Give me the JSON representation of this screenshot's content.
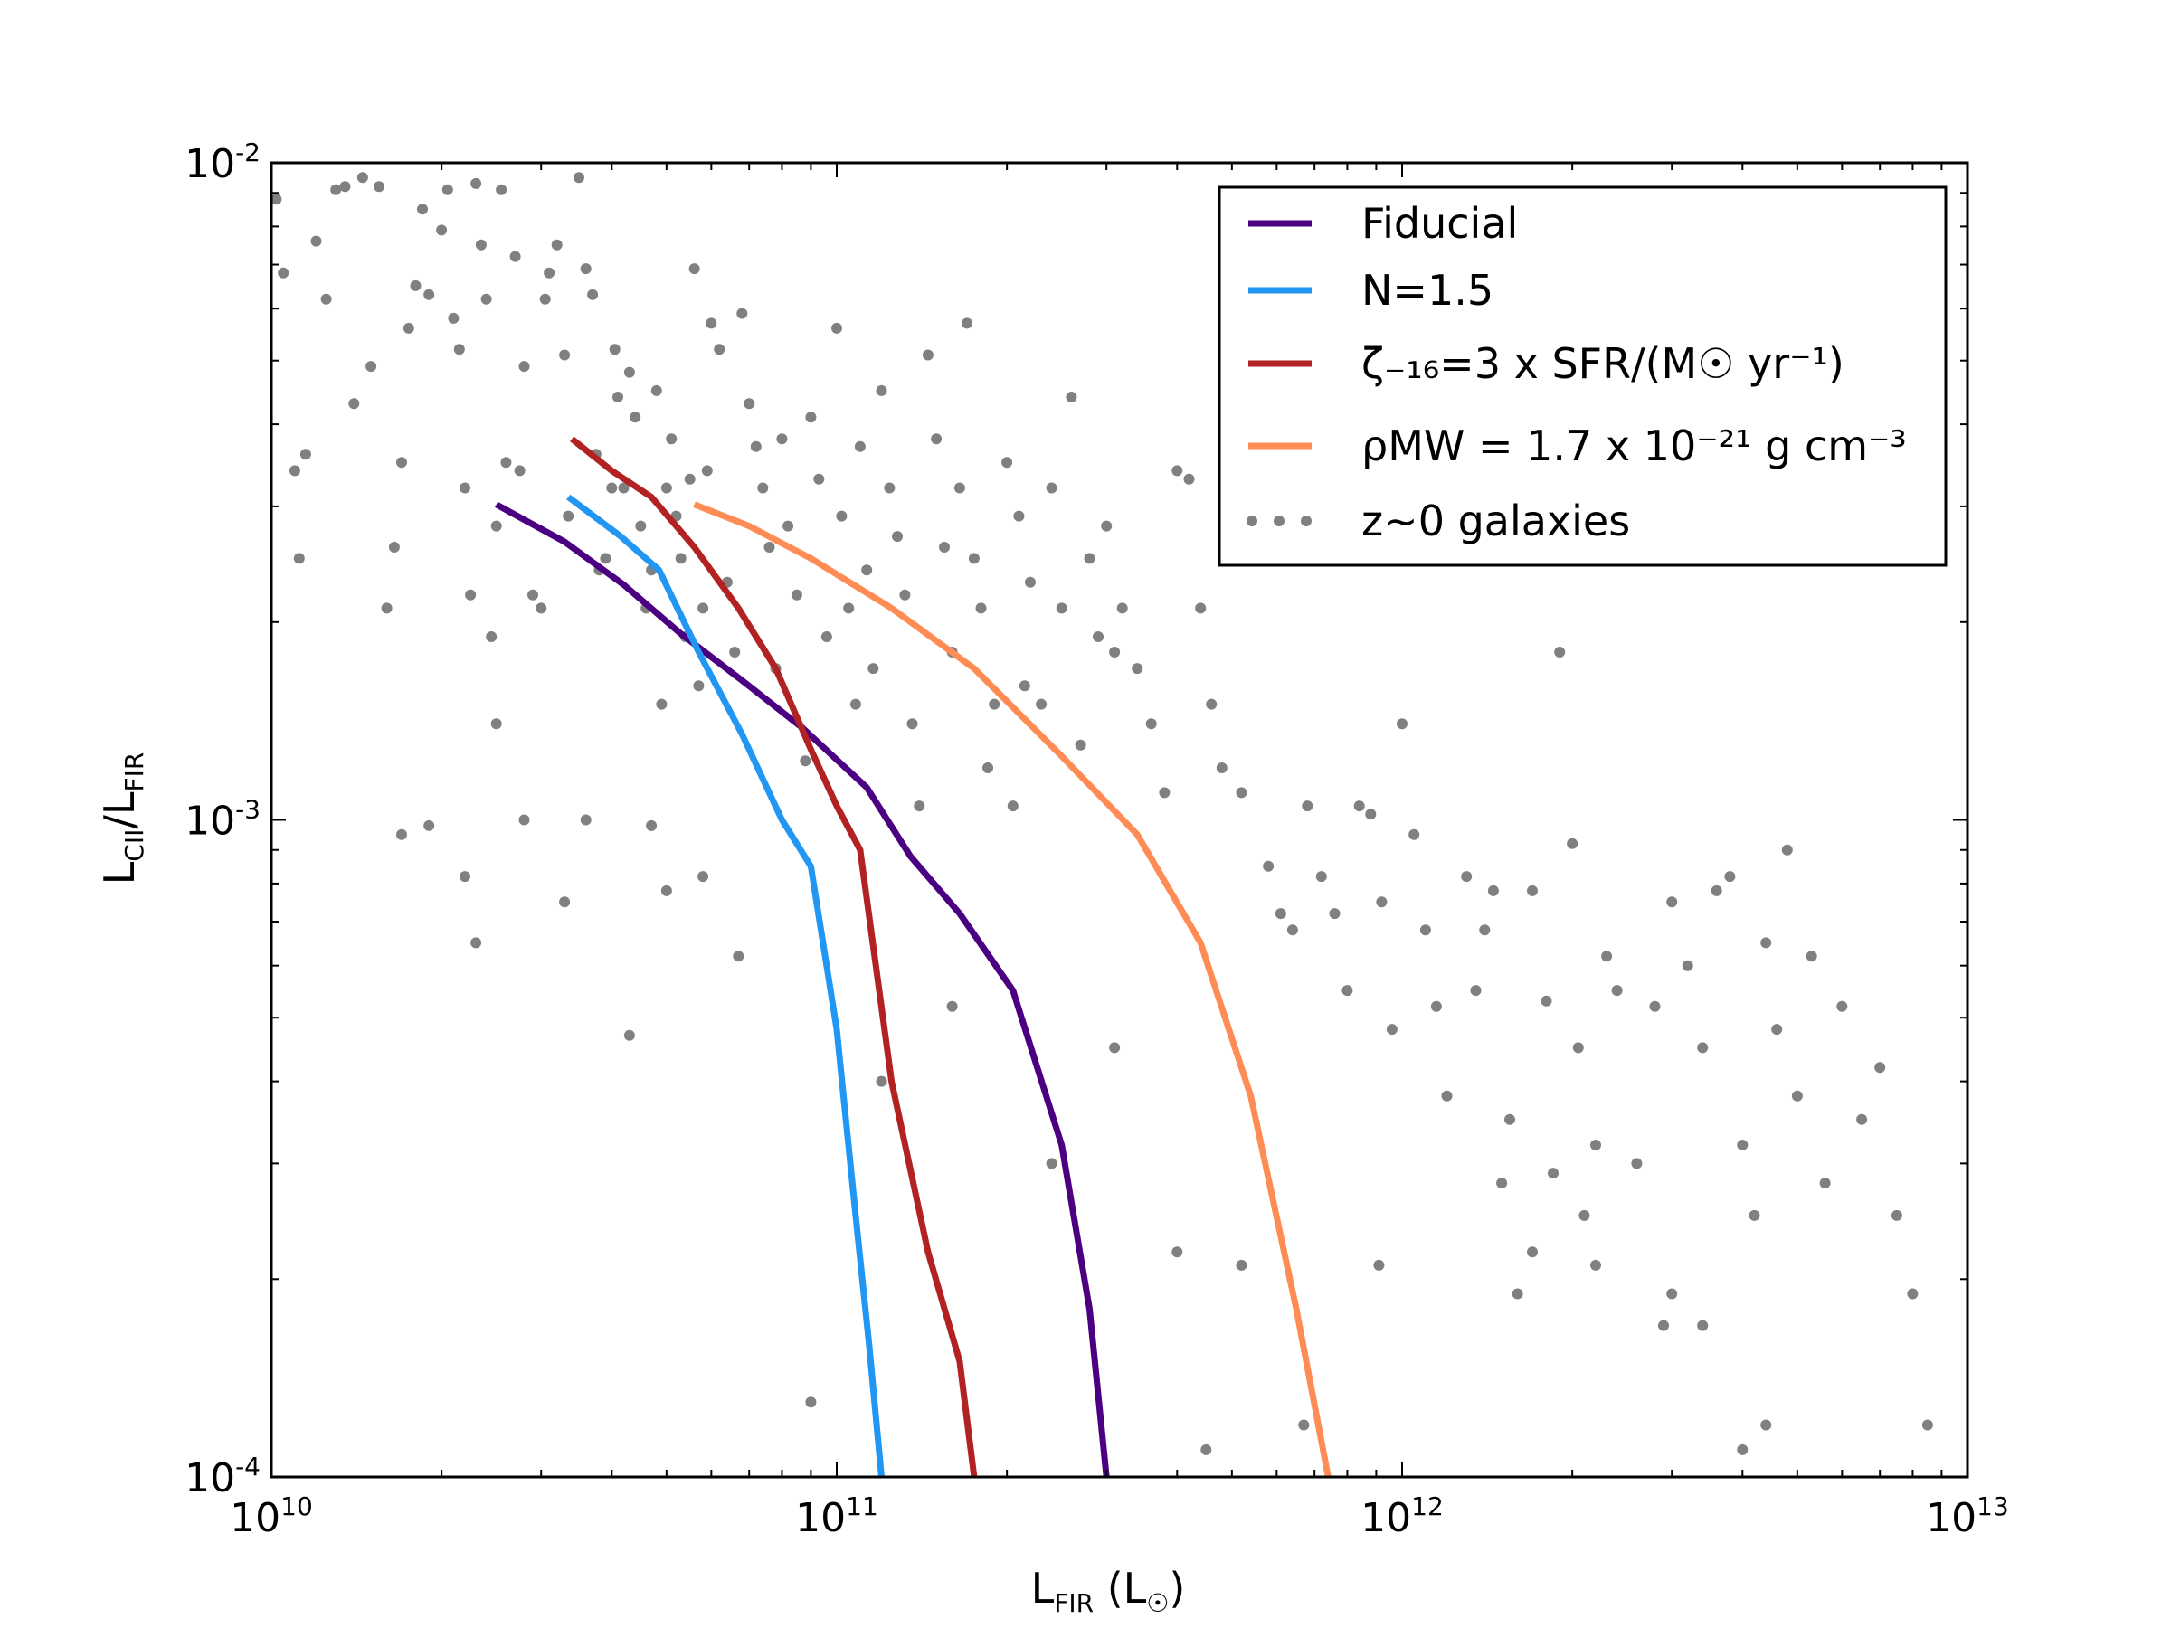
{
  "chart_data": {
    "type": "line",
    "title": "",
    "xscale": "log",
    "yscale": "log",
    "xlim": [
      10000000000.0,
      10000000000000.0
    ],
    "ylim": [
      0.0001,
      0.01
    ],
    "xlabel": {
      "main": "L",
      "sub": "FIR",
      "tail": " (L",
      "sym": "☉",
      "end": ")"
    },
    "ylabel": {
      "a": "L",
      "a_sub": "CII",
      "b": "/L",
      "b_sub": "FIR"
    },
    "xticks": [
      {
        "value": 10000000000.0,
        "base": "10",
        "exp": "10"
      },
      {
        "value": 100000000000.0,
        "base": "10",
        "exp": "11"
      },
      {
        "value": 1000000000000.0,
        "base": "10",
        "exp": "12"
      },
      {
        "value": 10000000000000.0,
        "base": "10",
        "exp": "13"
      }
    ],
    "yticks": [
      {
        "value": 0.01,
        "base": "10",
        "exp": "-2"
      },
      {
        "value": 0.001,
        "base": "10",
        "exp": "-3"
      },
      {
        "value": 0.0001,
        "base": "10",
        "exp": "-4"
      }
    ],
    "legend_position": "top-right",
    "series": [
      {
        "name": "Fiducial",
        "color": "#4b0082",
        "x": [
          25000000000.0,
          33000000000.0,
          42000000000.0,
          53000000000.0,
          68000000000.0,
          87000000000.0,
          113000000000.0,
          135000000000.0,
          165000000000.0,
          205000000000.0,
          250000000000.0,
          280000000000.0,
          300000000000.0
        ],
        "y": [
          0.00302,
          0.00265,
          0.00228,
          0.00192,
          0.00163,
          0.00138,
          0.00112,
          0.00088,
          0.00072,
          0.00055,
          0.00032,
          0.00018,
          0.0001
        ]
      },
      {
        "name": "N=1.5",
        "color": "#2196f3",
        "x": [
          33500000000.0,
          41500000000.0,
          48500000000.0,
          57000000000.0,
          68000000000.0,
          80000000000.0,
          90000000000.0,
          100000000000.0,
          108000000000.0,
          114000000000.0,
          120000000000.0
        ],
        "y": [
          0.0031,
          0.0027,
          0.0024,
          0.0018,
          0.00135,
          0.001,
          0.00085,
          0.00048,
          0.00025,
          0.00016,
          0.0001
        ]
      },
      {
        "name": "ζ₋₁₆=3 x SFR/(M☉ yr⁻¹)",
        "color": "#b22222",
        "x": [
          34000000000.0,
          40000000000.0,
          47000000000.0,
          56000000000.0,
          67000000000.0,
          78000000000.0,
          90000000000.0,
          100000000000.0,
          110000000000.0,
          125000000000.0,
          145000000000.0,
          165000000000.0,
          175000000000.0
        ],
        "y": [
          0.0038,
          0.0034,
          0.0031,
          0.0026,
          0.0021,
          0.0017,
          0.00128,
          0.00105,
          0.0009,
          0.0004,
          0.00022,
          0.00015,
          0.0001
        ]
      },
      {
        "name": "ρMW = 1.7 x 10⁻²¹ g cm⁻³",
        "color": "#ff8c55",
        "x": [
          56000000000.0,
          70000000000.0,
          90000000000.0,
          125000000000.0,
          175000000000.0,
          250000000000.0,
          340000000000.0,
          440000000000.0,
          540000000000.0,
          650000000000.0,
          740000000000.0
        ],
        "y": [
          0.00302,
          0.0028,
          0.0025,
          0.0021,
          0.0017,
          0.00125,
          0.00095,
          0.00065,
          0.00038,
          0.00018,
          0.0001
        ]
      }
    ],
    "scatter": {
      "name": "z∼0 galaxies",
      "color": "#808080",
      "points": [
        [
          10200000000.0,
          0.0088
        ],
        [
          10500000000.0,
          0.0068
        ],
        [
          11000000000.0,
          0.0034
        ],
        [
          11200000000.0,
          0.0025
        ],
        [
          11500000000.0,
          0.0036
        ],
        [
          12000000000.0,
          0.0076
        ],
        [
          12500000000.0,
          0.0062
        ],
        [
          13000000000.0,
          0.0091
        ],
        [
          13500000000.0,
          0.0092
        ],
        [
          14000000000.0,
          0.0043
        ],
        [
          14500000000.0,
          0.0095
        ],
        [
          15000000000.0,
          0.0049
        ],
        [
          15500000000.0,
          0.0092
        ],
        [
          16000000000.0,
          0.0021
        ],
        [
          16500000000.0,
          0.0026
        ],
        [
          17000000000.0,
          0.0035
        ],
        [
          17500000000.0,
          0.0056
        ],
        [
          18000000000.0,
          0.0065
        ],
        [
          18500000000.0,
          0.0085
        ],
        [
          19000000000.0,
          0.0063
        ],
        [
          20000000000.0,
          0.0079
        ],
        [
          20500000000.0,
          0.0091
        ],
        [
          21000000000.0,
          0.0058
        ],
        [
          21500000000.0,
          0.0052
        ],
        [
          22000000000.0,
          0.0032
        ],
        [
          22500000000.0,
          0.0022
        ],
        [
          23000000000.0,
          0.0093
        ],
        [
          23500000000.0,
          0.0075
        ],
        [
          24000000000.0,
          0.0062
        ],
        [
          24500000000.0,
          0.0019
        ],
        [
          25000000000.0,
          0.0028
        ],
        [
          25500000000.0,
          0.0091
        ],
        [
          26000000000.0,
          0.0035
        ],
        [
          27000000000.0,
          0.0072
        ],
        [
          27500000000.0,
          0.0034
        ],
        [
          28000000000.0,
          0.0049
        ],
        [
          29000000000.0,
          0.0022
        ],
        [
          30000000000.0,
          0.0021
        ],
        [
          30500000000.0,
          0.0062
        ],
        [
          31000000000.0,
          0.0068
        ],
        [
          32000000000.0,
          0.0075
        ],
        [
          33000000000.0,
          0.0051
        ],
        [
          33500000000.0,
          0.0029
        ],
        [
          35000000000.0,
          0.0095
        ],
        [
          36000000000.0,
          0.0069
        ],
        [
          37000000000.0,
          0.0063
        ],
        [
          37500000000.0,
          0.0036
        ],
        [
          38000000000.0,
          0.0024
        ],
        [
          39000000000.0,
          0.0025
        ],
        [
          40000000000.0,
          0.0032
        ],
        [
          40500000000.0,
          0.0052
        ],
        [
          41000000000.0,
          0.0044
        ],
        [
          42000000000.0,
          0.0032
        ],
        [
          43000000000.0,
          0.0048
        ],
        [
          44000000000.0,
          0.0041
        ],
        [
          45000000000.0,
          0.0028
        ],
        [
          46000000000.0,
          0.0021
        ],
        [
          47000000000.0,
          0.0024
        ],
        [
          48000000000.0,
          0.0045
        ],
        [
          49000000000.0,
          0.0015
        ],
        [
          50000000000.0,
          0.0032
        ],
        [
          51000000000.0,
          0.0038
        ],
        [
          52000000000.0,
          0.0029
        ],
        [
          53000000000.0,
          0.0025
        ],
        [
          54000000000.0,
          0.0019
        ],
        [
          55000000000.0,
          0.0033
        ],
        [
          56000000000.0,
          0.0069
        ],
        [
          57000000000.0,
          0.0016
        ],
        [
          58000000000.0,
          0.0021
        ],
        [
          59000000000.0,
          0.0034
        ],
        [
          60000000000.0,
          0.0057
        ],
        [
          62000000000.0,
          0.0052
        ],
        [
          64000000000.0,
          0.0023
        ],
        [
          66000000000.0,
          0.0018
        ],
        [
          68000000000.0,
          0.0059
        ],
        [
          70000000000.0,
          0.0043
        ],
        [
          72000000000.0,
          0.0037
        ],
        [
          74000000000.0,
          0.0032
        ],
        [
          76000000000.0,
          0.0026
        ],
        [
          78000000000.0,
          0.0017
        ],
        [
          80000000000.0,
          0.0038
        ],
        [
          82000000000.0,
          0.0028
        ],
        [
          85000000000.0,
          0.0022
        ],
        [
          88000000000.0,
          0.00123
        ],
        [
          90000000000.0,
          0.0041
        ],
        [
          93000000000.0,
          0.0033
        ],
        [
          96000000000.0,
          0.0019
        ],
        [
          100000000000.0,
          0.0056
        ],
        [
          102000000000.0,
          0.0029
        ],
        [
          105000000000.0,
          0.0021
        ],
        [
          108000000000.0,
          0.0015
        ],
        [
          110000000000.0,
          0.0037
        ],
        [
          113000000000.0,
          0.0024
        ],
        [
          116000000000.0,
          0.0017
        ],
        [
          120000000000.0,
          0.0045
        ],
        [
          124000000000.0,
          0.0032
        ],
        [
          128000000000.0,
          0.0027
        ],
        [
          132000000000.0,
          0.0022
        ],
        [
          136000000000.0,
          0.0014
        ],
        [
          140000000000.0,
          0.00105
        ],
        [
          145000000000.0,
          0.0051
        ],
        [
          150000000000.0,
          0.0038
        ],
        [
          155000000000.0,
          0.0026
        ],
        [
          160000000000.0,
          0.0018
        ],
        [
          165000000000.0,
          0.0032
        ],
        [
          170000000000.0,
          0.0057
        ],
        [
          175000000000.0,
          0.0025
        ],
        [
          180000000000.0,
          0.0021
        ],
        [
          185000000000.0,
          0.0012
        ],
        [
          190000000000.0,
          0.0015
        ],
        [
          200000000000.0,
          0.0035
        ],
        [
          205000000000.0,
          0.00105
        ],
        [
          210000000000.0,
          0.0029
        ],
        [
          215000000000.0,
          0.0016
        ],
        [
          220000000000.0,
          0.0023
        ],
        [
          230000000000.0,
          0.0015
        ],
        [
          240000000000.0,
          0.0032
        ],
        [
          250000000000.0,
          0.0021
        ],
        [
          260000000000.0,
          0.0044
        ],
        [
          270000000000.0,
          0.0013
        ],
        [
          280000000000.0,
          0.0025
        ],
        [
          290000000000.0,
          0.0019
        ],
        [
          300000000000.0,
          0.0028
        ],
        [
          310000000000.0,
          0.0018
        ],
        [
          320000000000.0,
          0.0021
        ],
        [
          340000000000.0,
          0.0017
        ],
        [
          360000000000.0,
          0.0014
        ],
        [
          380000000000.0,
          0.0011
        ],
        [
          400000000000.0,
          0.0034
        ],
        [
          420000000000.0,
          0.0033
        ],
        [
          440000000000.0,
          0.0021
        ],
        [
          460000000000.0,
          0.0015
        ],
        [
          480000000000.0,
          0.0012
        ],
        [
          500000000000.0,
          0.0025
        ],
        [
          520000000000.0,
          0.0011
        ],
        [
          550000000000.0,
          0.0031
        ],
        [
          580000000000.0,
          0.00085
        ],
        [
          610000000000.0,
          0.00072
        ],
        [
          640000000000.0,
          0.00068
        ],
        [
          680000000000.0,
          0.00105
        ],
        [
          720000000000.0,
          0.00082
        ],
        [
          760000000000.0,
          0.00072
        ],
        [
          800000000000.0,
          0.00055
        ],
        [
          840000000000.0,
          0.00105
        ],
        [
          880000000000.0,
          0.00102
        ],
        [
          920000000000.0,
          0.00075
        ],
        [
          960000000000.0,
          0.00048
        ],
        [
          1000000000000.0,
          0.0014
        ],
        [
          1050000000000.0,
          0.00095
        ],
        [
          1100000000000.0,
          0.00068
        ],
        [
          1150000000000.0,
          0.00052
        ],
        [
          1200000000000.0,
          0.00038
        ],
        [
          1300000000000.0,
          0.00082
        ],
        [
          1350000000000.0,
          0.00055
        ],
        [
          1400000000000.0,
          0.00068
        ],
        [
          1450000000000.0,
          0.00078
        ],
        [
          1500000000000.0,
          0.00028
        ],
        [
          1550000000000.0,
          0.00035
        ],
        [
          1600000000000.0,
          0.00019
        ],
        [
          1700000000000.0,
          0.00078
        ],
        [
          1800000000000.0,
          0.00053
        ],
        [
          1850000000000.0,
          0.00029
        ],
        [
          1900000000000.0,
          0.0018
        ],
        [
          2000000000000.0,
          0.00092
        ],
        [
          2050000000000.0,
          0.00045
        ],
        [
          2100000000000.0,
          0.00025
        ],
        [
          2200000000000.0,
          0.00032
        ],
        [
          2300000000000.0,
          0.00062
        ],
        [
          2400000000000.0,
          0.00055
        ],
        [
          2600000000000.0,
          0.0003
        ],
        [
          2800000000000.0,
          0.00052
        ],
        [
          3000000000000.0,
          0.00075
        ],
        [
          3200000000000.0,
          0.0006
        ],
        [
          3400000000000.0,
          0.00045
        ],
        [
          3600000000000.0,
          0.00078
        ],
        [
          3800000000000.0,
          0.00082
        ],
        [
          4000000000000.0,
          0.00032
        ],
        [
          4200000000000.0,
          0.00025
        ],
        [
          4400000000000.0,
          0.00065
        ],
        [
          4600000000000.0,
          0.00048
        ],
        [
          4800000000000.0,
          0.0009
        ],
        [
          5000000000000.0,
          0.00038
        ],
        [
          5300000000000.0,
          0.00062
        ],
        [
          5600000000000.0,
          0.00028
        ],
        [
          6000000000000.0,
          0.00052
        ],
        [
          6500000000000.0,
          0.00035
        ],
        [
          7000000000000.0,
          0.00042
        ],
        [
          7500000000000.0,
          0.00025
        ],
        [
          8000000000000.0,
          0.00019
        ],
        [
          8500000000000.0,
          0.00012
        ],
        [
          22000000000.0,
          0.00082
        ],
        [
          23000000000.0,
          0.00065
        ],
        [
          28000000000.0,
          0.001
        ],
        [
          33000000000.0,
          0.00075
        ],
        [
          43000000000.0,
          0.00047
        ],
        [
          50000000000.0,
          0.00078
        ],
        [
          67000000000.0,
          0.00062
        ],
        [
          90000000000.0,
          0.00013
        ],
        [
          120000000000.0,
          0.0004
        ],
        [
          160000000000.0,
          0.00052
        ],
        [
          240000000000.0,
          0.0003
        ],
        [
          310000000000.0,
          0.00045
        ],
        [
          400000000000.0,
          0.00022
        ],
        [
          450000000000.0,
          0.00011
        ],
        [
          520000000000.0,
          0.00021
        ],
        [
          670000000000.0,
          0.00012
        ],
        [
          25000000000.0,
          0.0014
        ],
        [
          36000000000.0,
          0.001
        ],
        [
          47000000000.0,
          0.00098
        ],
        [
          58000000000.0,
          0.00082
        ],
        [
          19000000000.0,
          0.00098
        ],
        [
          17000000000.0,
          0.00095
        ],
        [
          4400000000000.0,
          0.00012
        ],
        [
          4000000000000.0,
          0.00011
        ],
        [
          3400000000000.0,
          0.00017
        ],
        [
          2900000000000.0,
          0.00017
        ],
        [
          1700000000000.0,
          0.00022
        ],
        [
          910000000000.0,
          0.00021
        ],
        [
          3000000000000.0,
          0.00019
        ],
        [
          2200000000000.0,
          0.00021
        ]
      ]
    }
  }
}
